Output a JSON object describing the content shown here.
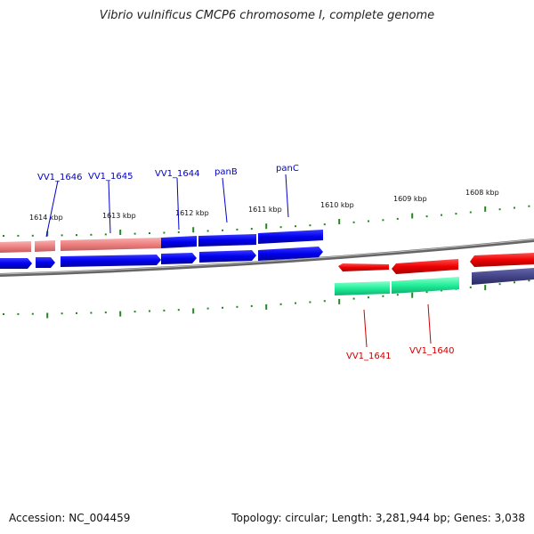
{
  "title": "Vibrio vulnificus CMCP6 chromosome I, complete genome",
  "footer": {
    "accession": "Accession: NC_004459",
    "stats": "Topology: circular; Length: 3,281,944 bp; Genes: 3,038"
  },
  "colors": {
    "forward_cds": "#0000ee",
    "forward_faded": "#ee8080",
    "reverse_cds": "#ee0000",
    "reverse_feature": "#22ee99",
    "reverse_dark": "#444488",
    "backbone": "#777777",
    "tick": "#228822",
    "forward_label": "#0000cc",
    "reverse_label": "#cc0000"
  },
  "scale_ticks": [
    "1614 kbp",
    "1613 kbp",
    "1612 kbp",
    "1611 kbp",
    "1610 kbp",
    "1609 kbp",
    "1608 kbp"
  ],
  "gene_labels": [
    {
      "name": "VV1_1646",
      "strand": "forward"
    },
    {
      "name": "VV1_1645",
      "strand": "forward"
    },
    {
      "name": "VV1_1644",
      "strand": "forward"
    },
    {
      "name": "panB",
      "strand": "forward"
    },
    {
      "name": "panC",
      "strand": "forward"
    },
    {
      "name": "VV1_1641",
      "strand": "reverse"
    },
    {
      "name": "VV1_1640",
      "strand": "reverse"
    }
  ]
}
